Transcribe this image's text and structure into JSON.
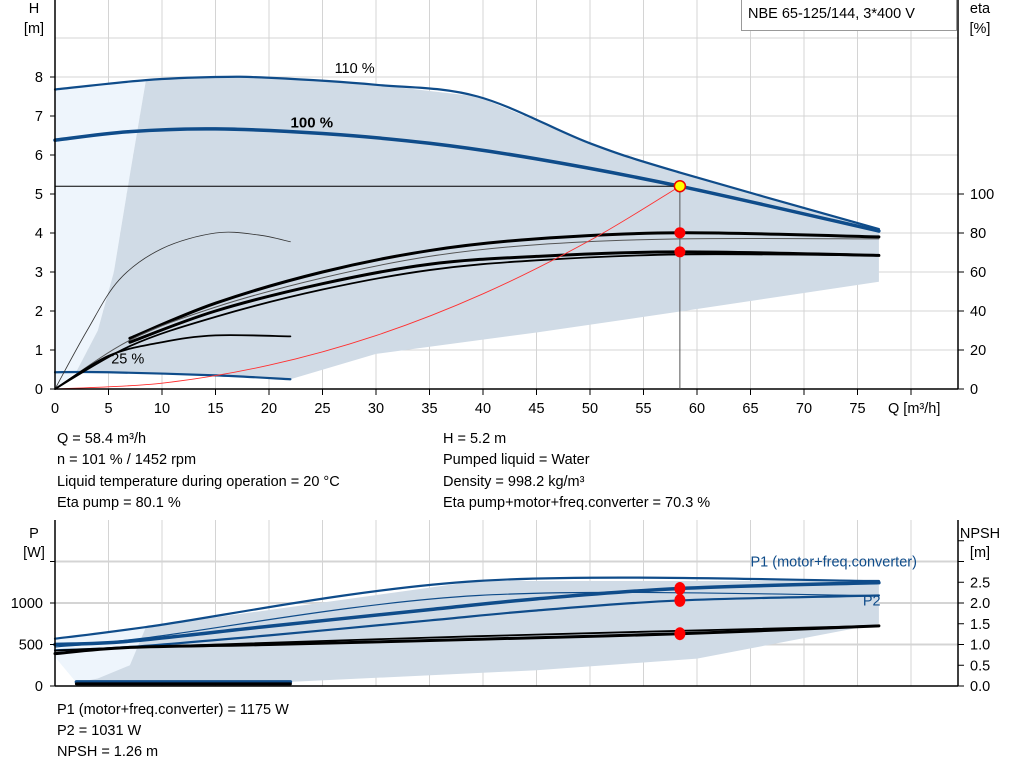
{
  "title": "NBE 65-125/144, 3*400 V",
  "colors": {
    "curve_blue": "#0f4c8a",
    "area": "#d0dbe6",
    "area_light": "#eef5fc",
    "operating_point": "#ff0000",
    "duty_point": "#ffff00",
    "system_curve": "#ff3030",
    "grid": "#d4d4d4"
  },
  "info_top": {
    "left": [
      "Q = 58.4 m³/h",
      "n = 101 % / 1452 rpm",
      "Liquid temperature during operation = 20 °C",
      "Eta pump = 80.1 %"
    ],
    "right": [
      "H = 5.2 m",
      "Pumped liquid = Water",
      "Density = 998.2 kg/m³",
      "Eta pump+motor+freq.converter = 70.3 %"
    ]
  },
  "info_bottom": [
    "P1 (motor+freq.converter) = 1175 W",
    "P2 = 1031 W",
    "NPSH = 1.26 m"
  ],
  "chart_data": [
    {
      "type": "line",
      "ylabel": "H",
      "yunit": "[m]",
      "y2label": "eta",
      "y2unit": "[%]",
      "xlabel": "Q [m³/h]",
      "xlim": [
        0,
        84.4
      ],
      "ylim": [
        0,
        10
      ],
      "y2lim": [
        0,
        200
      ],
      "xticks": [
        0,
        5,
        10,
        15,
        20,
        25,
        30,
        35,
        40,
        45,
        50,
        55,
        60,
        65,
        70,
        75
      ],
      "yticks": [
        0,
        1,
        2,
        3,
        4,
        5,
        6,
        7,
        8
      ],
      "y2ticks": [
        0,
        20,
        40,
        60,
        80,
        100
      ],
      "grid": true,
      "curve_labels": [
        {
          "text": "110 %",
          "x": 28,
          "y": 8.1
        },
        {
          "text": "100 %",
          "x": 24,
          "y": 6.7
        },
        {
          "text": "25 %",
          "x": 6.8,
          "y": 0.65
        }
      ],
      "areas": [
        {
          "name": "light",
          "points": [
            [
              0,
              7.68
            ],
            [
              8.5,
              7.92
            ],
            [
              7,
              5.5
            ],
            [
              5.5,
              3
            ],
            [
              4,
              1.5
            ],
            [
              2,
              0.45
            ],
            [
              0,
              0
            ]
          ]
        },
        {
          "name": "dark",
          "points": [
            [
              8.5,
              7.92
            ],
            [
              15,
              8.0
            ],
            [
              20,
              7.98
            ],
            [
              30,
              7.8
            ],
            [
              39.5,
              7.5
            ],
            [
              50,
              6.3
            ],
            [
              58.4,
              5.55
            ],
            [
              77,
              4.1
            ],
            [
              77,
              2.75
            ],
            [
              60,
              2.05
            ],
            [
              45,
              1.45
            ],
            [
              30,
              0.9
            ],
            [
              22,
              0.25
            ],
            [
              10,
              0.38
            ],
            [
              2,
              0.45
            ],
            [
              4,
              1.5
            ],
            [
              5.5,
              3
            ],
            [
              7,
              5.5
            ]
          ]
        }
      ],
      "series": [
        {
          "name": "110 %",
          "axis": "H",
          "style": "blue",
          "points": [
            [
              0,
              7.68
            ],
            [
              8.5,
              7.92
            ],
            [
              15,
              8.0
            ],
            [
              20,
              7.98
            ],
            [
              30,
              7.8
            ],
            [
              39.5,
              7.5
            ],
            [
              50,
              6.3
            ],
            [
              58.4,
              5.55
            ],
            [
              77,
              4.1
            ]
          ]
        },
        {
          "name": "100 %",
          "axis": "H",
          "style": "blue-thick",
          "points": [
            [
              0,
              6.38
            ],
            [
              7,
              6.6
            ],
            [
              15,
              6.67
            ],
            [
              25,
              6.55
            ],
            [
              35,
              6.3
            ],
            [
              45,
              5.9
            ],
            [
              58.4,
              5.2
            ],
            [
              77,
              4.05
            ]
          ]
        },
        {
          "name": "25 %",
          "axis": "H",
          "style": "blue",
          "points": [
            [
              0,
              0.43
            ],
            [
              5,
              0.43
            ],
            [
              15,
              0.35
            ],
            [
              22,
              0.25
            ]
          ]
        },
        {
          "axis": "eta",
          "style": "black-thick",
          "points": [
            [
              7,
              26
            ],
            [
              15,
              44
            ],
            [
              25,
              60
            ],
            [
              35,
              71
            ],
            [
              45,
              77
            ],
            [
              58.4,
              80.1
            ],
            [
              77,
              78
            ]
          ]
        },
        {
          "axis": "eta",
          "style": "black-thin",
          "points": [
            [
              0,
              0
            ],
            [
              7,
              25
            ],
            [
              15,
              42
            ],
            [
              25,
              57
            ],
            [
              35,
              68
            ],
            [
              45,
              74
            ],
            [
              58.4,
              77
            ],
            [
              77,
              77
            ]
          ]
        },
        {
          "axis": "eta",
          "style": "black-thick",
          "points": [
            [
              7,
              24
            ],
            [
              15,
              40
            ],
            [
              25,
              54
            ],
            [
              35,
              64
            ],
            [
              45,
              68
            ],
            [
              58.4,
              70.3
            ],
            [
              77,
              68.5
            ]
          ]
        },
        {
          "axis": "eta",
          "style": "black-mid",
          "points": [
            [
              0,
              0
            ],
            [
              7,
              22
            ],
            [
              15,
              37
            ],
            [
              25,
              51
            ],
            [
              35,
              61
            ],
            [
              45,
              66
            ],
            [
              58.4,
              69
            ],
            [
              77,
              68.5
            ]
          ]
        },
        {
          "axis": "eta",
          "style": "black-mid",
          "points": [
            [
              0,
              0
            ],
            [
              5,
              17
            ],
            [
              10,
              24
            ],
            [
              15,
              27.5
            ],
            [
              22,
              27
            ]
          ]
        },
        {
          "axis": "eta",
          "style": "black-hair",
          "points": [
            [
              0,
              0
            ],
            [
              3,
              30
            ],
            [
              6,
              56
            ],
            [
              10,
              72
            ],
            [
              15,
              80
            ],
            [
              19,
              79
            ],
            [
              22,
              75.5
            ]
          ]
        },
        {
          "name": "system curve",
          "axis": "H",
          "style": "red",
          "points": [
            [
              0,
              0
            ],
            [
              10,
              0.15
            ],
            [
              20,
              0.61
            ],
            [
              30,
              1.37
            ],
            [
              40,
              2.44
            ],
            [
              50,
              3.81
            ],
            [
              58.4,
              5.2
            ]
          ]
        }
      ],
      "duty_point": {
        "Q": 58.4,
        "H": 5.2
      },
      "markers": [
        {
          "Q": 58.4,
          "eta": 80.1
        },
        {
          "Q": 58.4,
          "eta": 70.3
        }
      ]
    },
    {
      "type": "line",
      "ylabel": "P",
      "yunit": "[W]",
      "y2label": "NPSH",
      "y2unit": "[m]",
      "xlim": [
        0,
        84.4
      ],
      "ylim": [
        0,
        2000
      ],
      "y2lim": [
        0,
        4
      ],
      "yticks": [
        0,
        500,
        1000
      ],
      "y2ticks": [
        0.0,
        0.5,
        1.0,
        1.5,
        2.0,
        2.5
      ],
      "y2ticks_unlabeled": [
        3.0,
        3.5
      ],
      "grid": true,
      "series_labels": [
        {
          "text": "P1 (motor+freq.converter)",
          "x": 65,
          "y": 1440
        },
        {
          "text": "P2",
          "x": 75.5,
          "y": 970
        }
      ],
      "areas": [
        {
          "name": "light",
          "points": [
            [
              0,
              570
            ],
            [
              8.5,
              710
            ],
            [
              7,
              200
            ],
            [
              4,
              40
            ],
            [
              2,
              40
            ],
            [
              0,
              350
            ]
          ]
        },
        {
          "name": "dark",
          "points": [
            [
              8.5,
              710
            ],
            [
              39.5,
              1265
            ],
            [
              77,
              1265
            ],
            [
              77,
              750
            ],
            [
              60,
              330
            ],
            [
              45,
              190
            ],
            [
              22,
              50
            ],
            [
              2,
              40
            ],
            [
              4,
              90
            ],
            [
              7,
              250
            ]
          ]
        }
      ],
      "series": [
        {
          "name": "P1 110 %",
          "axis": "P",
          "style": "blue",
          "points": [
            [
              0,
              570
            ],
            [
              8.5,
              710
            ],
            [
              39.5,
              1265
            ],
            [
              77,
              1265
            ]
          ]
        },
        {
          "name": "P1 100 %",
          "axis": "P",
          "style": "blue-thick",
          "points": [
            [
              0,
              500
            ],
            [
              7,
              540
            ],
            [
              20,
              720
            ],
            [
              35,
              920
            ],
            [
              45,
              1050
            ],
            [
              58.4,
              1175
            ],
            [
              77,
              1245
            ]
          ]
        },
        {
          "name": "P2 110 %",
          "axis": "P",
          "style": "blue-thin",
          "points": [
            [
              0,
              470
            ],
            [
              8.5,
              580
            ],
            [
              39.5,
              1090
            ],
            [
              77,
              1090
            ]
          ]
        },
        {
          "name": "P2 100 %",
          "axis": "P",
          "style": "blue",
          "points": [
            [
              0,
              430
            ],
            [
              7,
              470
            ],
            [
              20,
              610
            ],
            [
              35,
              790
            ],
            [
              45,
              910
            ],
            [
              58.4,
              1031
            ],
            [
              77,
              1090
            ]
          ]
        },
        {
          "name": "P 25 %",
          "axis": "P",
          "style": "blue-thick",
          "points": [
            [
              2,
              50
            ],
            [
              22,
              50
            ]
          ]
        },
        {
          "name": "NPSH 100 %",
          "axis": "NPSH",
          "style": "black-thick",
          "points": [
            [
              0,
              0.78
            ],
            [
              7,
              0.93
            ],
            [
              20,
              1.0
            ],
            [
              40,
              1.13
            ],
            [
              58.4,
              1.26
            ],
            [
              77,
              1.45
            ]
          ]
        },
        {
          "name": "NPSH 110 %",
          "axis": "NPSH",
          "style": "black-mid",
          "points": [
            [
              0,
              0.85
            ],
            [
              7,
              0.93
            ],
            [
              39.5,
              1.2
            ],
            [
              77,
              1.45
            ]
          ]
        },
        {
          "name": "NPSH 25 %",
          "axis": "NPSH",
          "style": "black-thick",
          "points": [
            [
              2,
              0.05
            ],
            [
              22,
              0.05
            ]
          ]
        }
      ],
      "markers": [
        {
          "Q": 58.4,
          "P": 1175
        },
        {
          "Q": 58.4,
          "P": 1031
        },
        {
          "Q": 58.4,
          "NPSH": 1.26
        }
      ]
    }
  ]
}
